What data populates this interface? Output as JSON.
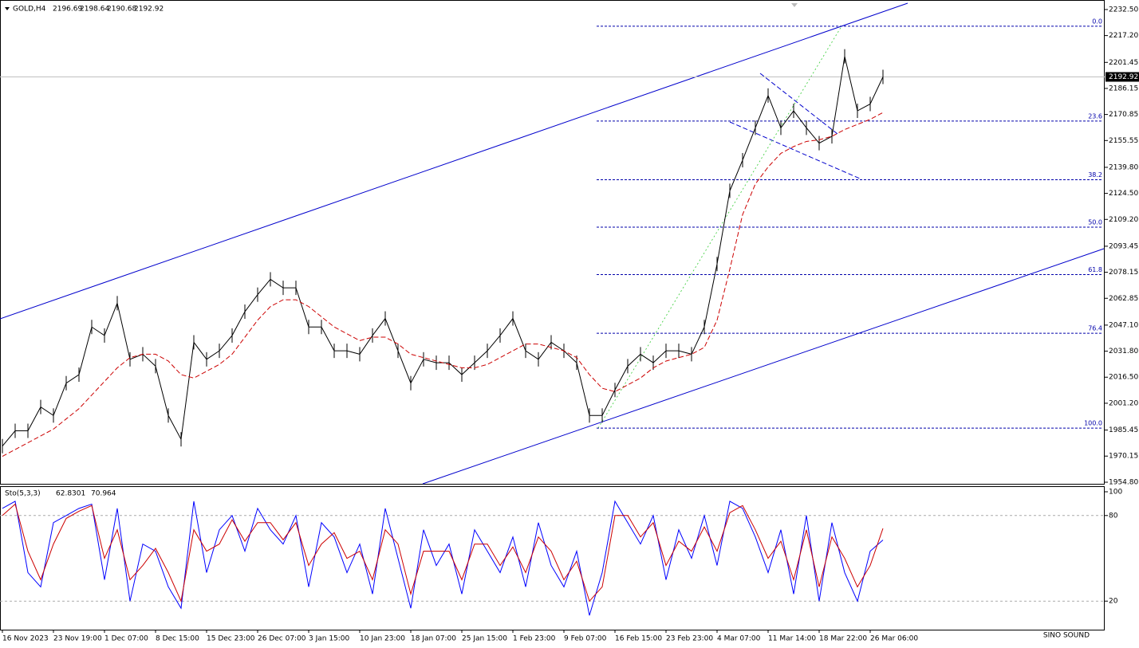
{
  "chart_data": {
    "type": "line",
    "symbol": "GOLD,H4",
    "ohlc": [
      2196.69,
      2198.64,
      2190.68,
      2192.92
    ],
    "categories": [
      "16 Nov 2023",
      null,
      null,
      null,
      "23 Nov 19:00",
      null,
      null,
      null,
      "1 Dec 07:00",
      null,
      null,
      null,
      "8 Dec 15:00",
      null,
      null,
      null,
      "15 Dec 23:00",
      null,
      null,
      null,
      "26 Dec 07:00",
      null,
      null,
      null,
      "3 Jan 15:00",
      null,
      null,
      null,
      "10 Jan 23:00",
      null,
      null,
      null,
      "18 Jan 07:00",
      null,
      null,
      null,
      "25 Jan 15:00",
      null,
      null,
      null,
      "1 Feb 23:00",
      null,
      null,
      null,
      "9 Feb 07:00",
      null,
      null,
      null,
      "16 Feb 15:00",
      null,
      null,
      null,
      "23 Feb 23:00",
      null,
      null,
      null,
      "4 Mar 07:00",
      null,
      null,
      null,
      "11 Mar 14:00",
      null,
      null,
      null,
      "18 Mar 22:00",
      null,
      null,
      null,
      "26 Mar 06:00",
      null
    ],
    "series": [
      {
        "color": "#000000",
        "values": [
          1976,
          1985,
          1985,
          1999,
          1994,
          2013,
          2018,
          2046,
          2041,
          2060,
          2027,
          2030,
          2023,
          1994,
          1980,
          2037,
          2027,
          2032,
          2041,
          2055,
          2065,
          2074,
          2069,
          2069,
          2046,
          2046,
          2032,
          2032,
          2030,
          2041,
          2051,
          2032,
          2013,
          2027,
          2025,
          2025,
          2018,
          2025,
          2032,
          2041,
          2051,
          2032,
          2027,
          2037,
          2032,
          2025,
          1994,
          1994,
          2009,
          2023,
          2030,
          2025,
          2032,
          2032,
          2030,
          2046,
          2083,
          2126,
          2144,
          2163,
          2182,
          2163,
          2173,
          2163,
          2154,
          2158,
          2205,
          2173,
          2177,
          2192.92
        ]
      },
      {
        "color": "#cc0000",
        "values": [
          1970,
          1974,
          1978,
          1982,
          1986,
          1992,
          1998,
          2006,
          2014,
          2022,
          2028,
          2030,
          2030,
          2026,
          2018,
          2016,
          2020,
          2024,
          2030,
          2040,
          2050,
          2058,
          2062,
          2062,
          2058,
          2052,
          2046,
          2042,
          2038,
          2040,
          2040,
          2036,
          2030,
          2028,
          2026,
          2024,
          2022,
          2022,
          2024,
          2028,
          2032,
          2036,
          2036,
          2034,
          2032,
          2028,
          2018,
          2010,
          2008,
          2012,
          2016,
          2022,
          2026,
          2028,
          2030,
          2034,
          2050,
          2080,
          2112,
          2130,
          2140,
          2148,
          2152,
          2155,
          2156,
          2158,
          2162,
          2165,
          2168,
          2172
        ]
      }
    ],
    "ylim": [
      1953.4,
      2238.1
    ],
    "yticks": [
      {
        "value": 2232.5,
        "label": "2232.50"
      },
      {
        "value": 2217.2,
        "label": "2217.20"
      },
      2201.45,
      2186.15,
      2170.85,
      2155.55,
      {
        "value": 2139.8,
        "label": "2139.80"
      },
      {
        "value": 2124.5,
        "label": "2124.50"
      },
      {
        "value": 2109.2,
        "label": "2109.20"
      },
      2093.45,
      2078.15,
      2062.85,
      {
        "value": 2047.1,
        "label": "2047.10"
      },
      {
        "value": 2031.8,
        "label": "2031.80"
      },
      {
        "value": 2016.5,
        "label": "2016.50"
      },
      {
        "value": 2001.2,
        "label": "2001.20"
      },
      1985.45,
      1970.15,
      {
        "value": 1954.8,
        "label": "1954.80"
      }
    ],
    "fib": {
      "high": 2222.7,
      "low": 1986.6,
      "levels": [
        {
          "value": 0,
          "label": "0.0"
        },
        23.6,
        38.2,
        {
          "value": 50,
          "label": "50.0"
        },
        61.8,
        76.4,
        {
          "value": 100,
          "label": "100.0"
        }
      ]
    },
    "indicator": {
      "title": "Sto(5,3,3)",
      "readings": [
        62.8301,
        70.964
      ],
      "ylim": [
        0,
        100
      ],
      "yticks": [
        100,
        80,
        20
      ],
      "series": [
        {
          "color": "#0000ff",
          "values": [
            85,
            90,
            40,
            30,
            75,
            80,
            85,
            88,
            35,
            85,
            20,
            60,
            55,
            30,
            15,
            90,
            40,
            70,
            80,
            55,
            85,
            70,
            60,
            80,
            30,
            75,
            65,
            40,
            60,
            25,
            85,
            50,
            15,
            70,
            45,
            60,
            25,
            70,
            55,
            40,
            65,
            30,
            75,
            45,
            30,
            55,
            10,
            40,
            90,
            75,
            60,
            80,
            35,
            70,
            50,
            80,
            45,
            90,
            85,
            65,
            40,
            70,
            25,
            80,
            20,
            75,
            40,
            20,
            55,
            62.8301
          ]
        },
        {
          "color": "#cc0000",
          "values": [
            80,
            88,
            55,
            35,
            60,
            78,
            83,
            87,
            50,
            70,
            35,
            45,
            57,
            40,
            20,
            70,
            55,
            60,
            77,
            62,
            75,
            75,
            63,
            75,
            45,
            60,
            68,
            50,
            55,
            35,
            70,
            60,
            25,
            55,
            55,
            55,
            35,
            60,
            60,
            45,
            58,
            40,
            65,
            55,
            35,
            48,
            20,
            30,
            80,
            80,
            65,
            75,
            45,
            62,
            55,
            72,
            55,
            82,
            87,
            70,
            50,
            62,
            35,
            70,
            30,
            65,
            50,
            30,
            45,
            70.964
          ]
        }
      ]
    },
    "watermark": "SINO SOUND"
  }
}
